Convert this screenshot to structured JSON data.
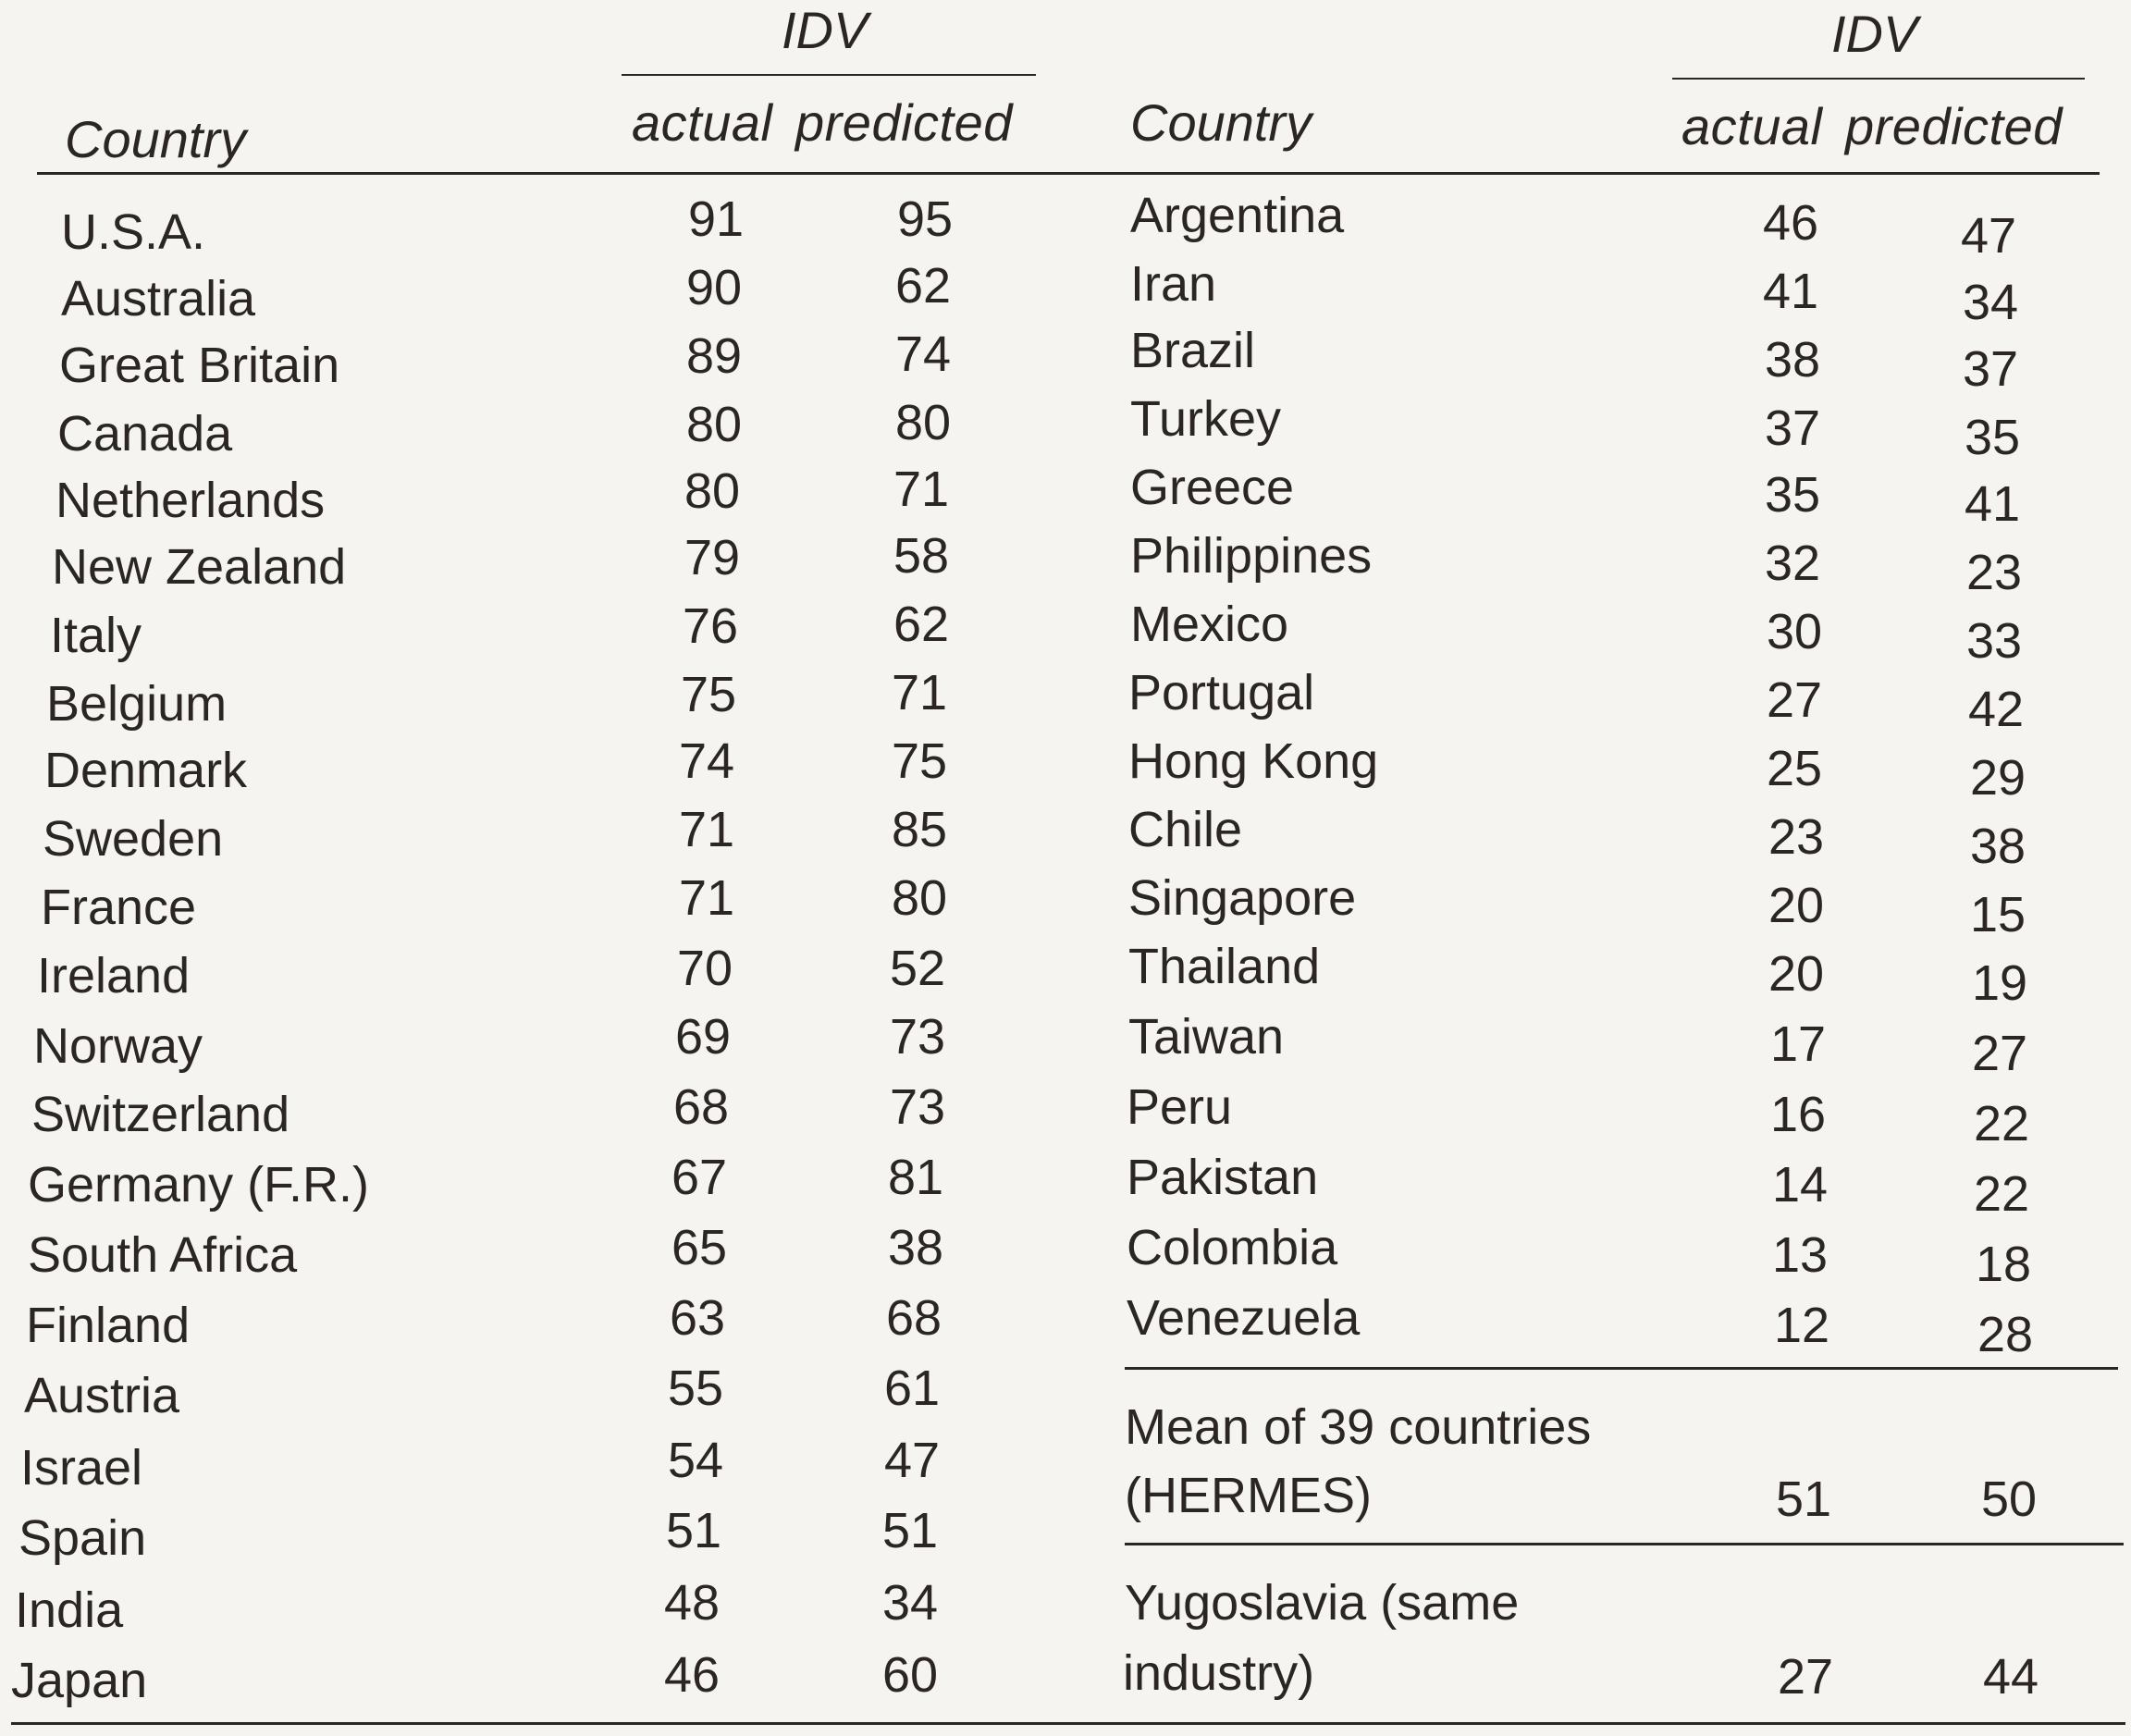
{
  "table": {
    "left": {
      "group_header": "IDV",
      "country_header": "Country",
      "actual_header": "actual",
      "predicted_header": "predicted",
      "rows": [
        {
          "country": "U.S.A.",
          "actual": "91",
          "predicted": "95"
        },
        {
          "country": "Australia",
          "actual": "90",
          "predicted": "62"
        },
        {
          "country": "Great Britain",
          "actual": "89",
          "predicted": "74"
        },
        {
          "country": "Canada",
          "actual": "80",
          "predicted": "80"
        },
        {
          "country": "Netherlands",
          "actual": "80",
          "predicted": "71"
        },
        {
          "country": "New Zealand",
          "actual": "79",
          "predicted": "58"
        },
        {
          "country": "Italy",
          "actual": "76",
          "predicted": "62"
        },
        {
          "country": "Belgium",
          "actual": "75",
          "predicted": "71"
        },
        {
          "country": "Denmark",
          "actual": "74",
          "predicted": "75"
        },
        {
          "country": "Sweden",
          "actual": "71",
          "predicted": "85"
        },
        {
          "country": "France",
          "actual": "71",
          "predicted": "80"
        },
        {
          "country": "Ireland",
          "actual": "70",
          "predicted": "52"
        },
        {
          "country": "Norway",
          "actual": "69",
          "predicted": "73"
        },
        {
          "country": "Switzerland",
          "actual": "68",
          "predicted": "73"
        },
        {
          "country": "Germany (F.R.)",
          "actual": "67",
          "predicted": "81"
        },
        {
          "country": "South Africa",
          "actual": "65",
          "predicted": "38"
        },
        {
          "country": "Finland",
          "actual": "63",
          "predicted": "68"
        },
        {
          "country": "Austria",
          "actual": "55",
          "predicted": "61"
        },
        {
          "country": "Israel",
          "actual": "54",
          "predicted": "47"
        },
        {
          "country": "Spain",
          "actual": "51",
          "predicted": "51"
        },
        {
          "country": "India",
          "actual": "48",
          "predicted": "34"
        },
        {
          "country": "Japan",
          "actual": "46",
          "predicted": "60"
        }
      ]
    },
    "right": {
      "group_header": "IDV",
      "country_header": "Country",
      "actual_header": "actual",
      "predicted_header": "predicted",
      "rows": [
        {
          "country": "Argentina",
          "actual": "46",
          "predicted": "47"
        },
        {
          "country": "Iran",
          "actual": "41",
          "predicted": "34"
        },
        {
          "country": "Brazil",
          "actual": "38",
          "predicted": "37"
        },
        {
          "country": "Turkey",
          "actual": "37",
          "predicted": "35"
        },
        {
          "country": "Greece",
          "actual": "35",
          "predicted": "41"
        },
        {
          "country": "Philippines",
          "actual": "32",
          "predicted": "23"
        },
        {
          "country": "Mexico",
          "actual": "30",
          "predicted": "33"
        },
        {
          "country": "Portugal",
          "actual": "27",
          "predicted": "42"
        },
        {
          "country": "Hong Kong",
          "actual": "25",
          "predicted": "29"
        },
        {
          "country": "Chile",
          "actual": "23",
          "predicted": "38"
        },
        {
          "country": "Singapore",
          "actual": "20",
          "predicted": "15"
        },
        {
          "country": "Thailand",
          "actual": "20",
          "predicted": "19"
        },
        {
          "country": "Taiwan",
          "actual": "17",
          "predicted": "27"
        },
        {
          "country": "Peru",
          "actual": "16",
          "predicted": "22"
        },
        {
          "country": "Pakistan",
          "actual": "14",
          "predicted": "22"
        },
        {
          "country": "Colombia",
          "actual": "13",
          "predicted": "18"
        },
        {
          "country": "Venezuela",
          "actual": "12",
          "predicted": "28"
        }
      ],
      "mean": {
        "line1": "Mean of 39 countries",
        "line2": "(HERMES)",
        "actual": "51",
        "predicted": "50"
      },
      "yugoslavia": {
        "line1": "Yugoslavia (same",
        "line2": "industry)",
        "actual": "27",
        "predicted": "44"
      }
    }
  }
}
